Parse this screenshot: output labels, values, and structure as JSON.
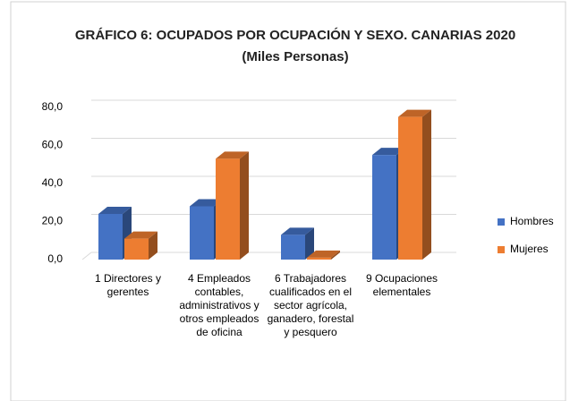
{
  "chart_data": {
    "type": "bar3d",
    "title": "GRÁFICO 6: OCUPADOS POR OCUPACIÓN Y SEXO. CANARIAS 2020 (Miles Personas)",
    "categories": [
      "1 Directores y gerentes",
      "4 Empleados contables, administrativos y otros empleados de oficina",
      "6 Trabajadores cualificados en el sector agrícola, ganadero, forestal y pesquero",
      "9 Ocupaciones elementales"
    ],
    "series": [
      {
        "name": "Hombres",
        "color": "#4472c4",
        "values": [
          24,
          28,
          13,
          55
        ]
      },
      {
        "name": "Mujeres",
        "color": "#ed7d31",
        "values": [
          11,
          53,
          1,
          75
        ]
      }
    ],
    "ylim": [
      0,
      80
    ],
    "yticks": [
      {
        "value": 0,
        "label": "0,0"
      },
      {
        "value": 20,
        "label": "20,0"
      },
      {
        "value": 40,
        "label": "40,0"
      },
      {
        "value": 60,
        "label": "60,0"
      },
      {
        "value": 80,
        "label": "80,0"
      }
    ],
    "grid": true,
    "legend": "right"
  }
}
